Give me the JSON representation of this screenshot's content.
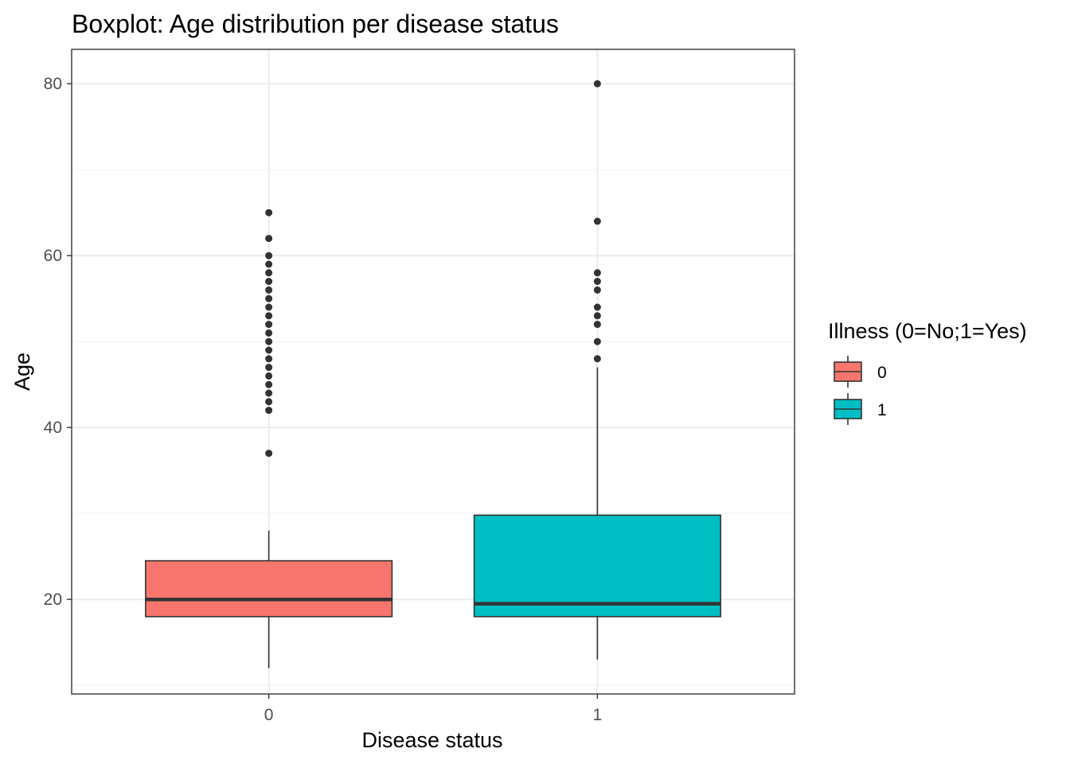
{
  "chart_data": {
    "type": "boxplot",
    "title": "Boxplot: Age distribution per disease status",
    "xlabel": "Disease status",
    "ylabel": "Age",
    "ylim": [
      9,
      84
    ],
    "y_ticks": [
      20,
      40,
      60,
      80
    ],
    "y_minor_ticks": [
      10,
      30,
      50,
      70
    ],
    "grid": true,
    "categories": [
      "0",
      "1"
    ],
    "legend": {
      "title": "Illness (0=No;1=Yes)",
      "position": "right",
      "entries": [
        {
          "label": "0",
          "color": "#F8766D"
        },
        {
          "label": "1",
          "color": "#00BFC4"
        }
      ]
    },
    "boxes": [
      {
        "category": "0",
        "color": "#F8766D",
        "whisker_low": 12,
        "q1": 18,
        "median": 20,
        "q3": 24.5,
        "whisker_high": 28,
        "outliers": [
          37,
          42,
          43,
          44,
          45,
          46,
          47,
          48,
          49,
          50,
          51,
          52,
          53,
          54,
          55,
          56,
          57,
          58,
          59,
          60,
          62,
          65
        ]
      },
      {
        "category": "1",
        "color": "#00BFC4",
        "whisker_low": 13,
        "q1": 18,
        "median": 19.5,
        "q3": 29.8,
        "whisker_high": 47,
        "outliers": [
          48,
          50,
          52,
          53,
          54,
          56,
          57,
          58,
          64,
          80
        ]
      }
    ]
  }
}
